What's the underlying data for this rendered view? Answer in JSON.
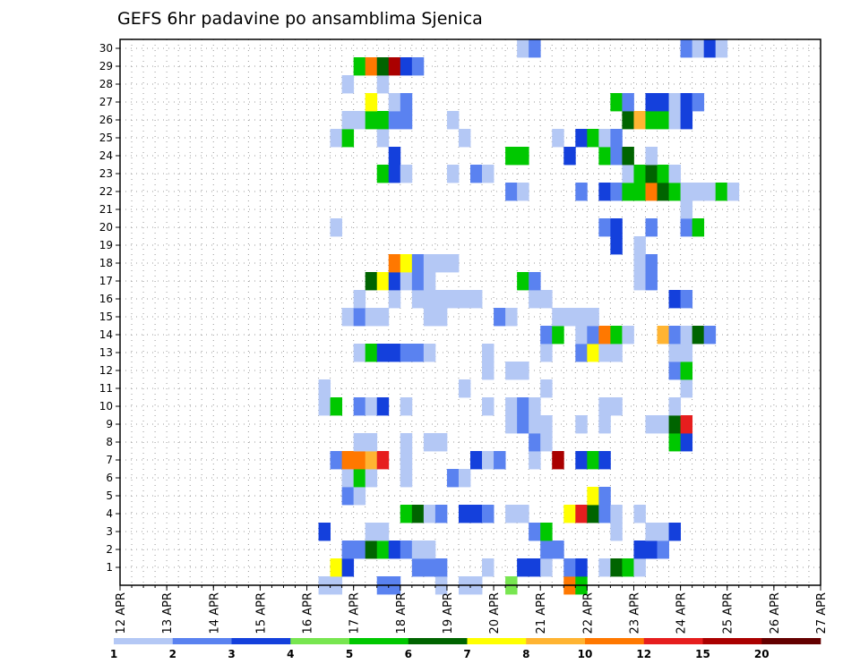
{
  "chart_data": {
    "type": "heatmap",
    "title": "GEFS 6hr padavine po ansamblima Sjenica",
    "xlabel": "",
    "ylabel": "",
    "x_start": "12 APR 00Z",
    "x_end": "27 APR 00Z",
    "x_step_hours": 6,
    "x_ticks": [
      "12 APR",
      "13 APR",
      "14 APR",
      "15 APR",
      "16 APR",
      "17 APR",
      "18 APR",
      "19 APR",
      "20 APR",
      "21 APR",
      "22 APR",
      "23 APR",
      "24 APR",
      "25 APR",
      "26 APR",
      "27 APR"
    ],
    "y_ticks": [
      "1",
      "2",
      "3",
      "4",
      "5",
      "6",
      "7",
      "8",
      "9",
      "10",
      "11",
      "12",
      "13",
      "14",
      "15",
      "16",
      "17",
      "18",
      "19",
      "20",
      "21",
      "22",
      "23",
      "24",
      "25",
      "26",
      "27",
      "28",
      "29",
      "30"
    ],
    "ylim": [
      0,
      30
    ],
    "grid": true,
    "legend": {
      "placement": "bottom",
      "levels": [
        "1",
        "2",
        "3",
        "4",
        "5",
        "6",
        "7",
        "8",
        "10",
        "12",
        "15",
        "20"
      ],
      "colors": [
        "#b4c8f5",
        "#5a82f0",
        "#1440dc",
        "#78e650",
        "#00c800",
        "#006400",
        "#ffff00",
        "#ffb432",
        "#ff7800",
        "#e61e1e",
        "#aa0000",
        "#640000"
      ]
    },
    "cells_note": "each cell: [time_step_index_from_12APR00Z, member, color_class_index]",
    "cells": [
      [
        17,
        0,
        0
      ],
      [
        18,
        0,
        0
      ],
      [
        22,
        0,
        1
      ],
      [
        23,
        0,
        1
      ],
      [
        27,
        0,
        0
      ],
      [
        29,
        0,
        0
      ],
      [
        30,
        0,
        0
      ],
      [
        33,
        0,
        3
      ],
      [
        38,
        0,
        8
      ],
      [
        39,
        0,
        4
      ],
      [
        18,
        1,
        6
      ],
      [
        19,
        1,
        2
      ],
      [
        25,
        1,
        1
      ],
      [
        26,
        1,
        1
      ],
      [
        27,
        1,
        1
      ],
      [
        31,
        1,
        0
      ],
      [
        34,
        1,
        2
      ],
      [
        35,
        1,
        2
      ],
      [
        36,
        1,
        0
      ],
      [
        38,
        1,
        1
      ],
      [
        39,
        1,
        2
      ],
      [
        41,
        1,
        0
      ],
      [
        42,
        1,
        5
      ],
      [
        43,
        1,
        4
      ],
      [
        44,
        1,
        0
      ],
      [
        19,
        2,
        1
      ],
      [
        20,
        2,
        1
      ],
      [
        21,
        2,
        5
      ],
      [
        22,
        2,
        4
      ],
      [
        23,
        2,
        2
      ],
      [
        24,
        2,
        1
      ],
      [
        25,
        2,
        0
      ],
      [
        26,
        2,
        0
      ],
      [
        36,
        2,
        1
      ],
      [
        37,
        2,
        1
      ],
      [
        44,
        2,
        2
      ],
      [
        45,
        2,
        2
      ],
      [
        46,
        2,
        1
      ],
      [
        17,
        3,
        2
      ],
      [
        21,
        3,
        0
      ],
      [
        22,
        3,
        0
      ],
      [
        35,
        3,
        1
      ],
      [
        36,
        3,
        4
      ],
      [
        42,
        3,
        0
      ],
      [
        45,
        3,
        0
      ],
      [
        46,
        3,
        0
      ],
      [
        47,
        3,
        2
      ],
      [
        24,
        4,
        4
      ],
      [
        25,
        4,
        5
      ],
      [
        26,
        4,
        0
      ],
      [
        27,
        4,
        1
      ],
      [
        29,
        4,
        2
      ],
      [
        30,
        4,
        2
      ],
      [
        31,
        4,
        1
      ],
      [
        33,
        4,
        0
      ],
      [
        34,
        4,
        0
      ],
      [
        38,
        4,
        6
      ],
      [
        39,
        4,
        9
      ],
      [
        40,
        4,
        5
      ],
      [
        41,
        4,
        1
      ],
      [
        42,
        4,
        0
      ],
      [
        44,
        4,
        0
      ],
      [
        19,
        5,
        1
      ],
      [
        20,
        5,
        0
      ],
      [
        40,
        5,
        6
      ],
      [
        41,
        5,
        1
      ],
      [
        19,
        6,
        0
      ],
      [
        20,
        6,
        4
      ],
      [
        21,
        6,
        0
      ],
      [
        24,
        6,
        0
      ],
      [
        28,
        6,
        1
      ],
      [
        29,
        6,
        0
      ],
      [
        18,
        7,
        1
      ],
      [
        19,
        7,
        8
      ],
      [
        20,
        7,
        8
      ],
      [
        21,
        7,
        7
      ],
      [
        22,
        7,
        9
      ],
      [
        24,
        7,
        0
      ],
      [
        30,
        7,
        2
      ],
      [
        31,
        7,
        0
      ],
      [
        32,
        7,
        1
      ],
      [
        35,
        7,
        0
      ],
      [
        37,
        7,
        10
      ],
      [
        39,
        7,
        2
      ],
      [
        40,
        7,
        4
      ],
      [
        41,
        7,
        2
      ],
      [
        20,
        8,
        0
      ],
      [
        21,
        8,
        0
      ],
      [
        24,
        8,
        0
      ],
      [
        26,
        8,
        0
      ],
      [
        27,
        8,
        0
      ],
      [
        35,
        8,
        1
      ],
      [
        36,
        8,
        0
      ],
      [
        47,
        8,
        4
      ],
      [
        48,
        8,
        2
      ],
      [
        33,
        9,
        0
      ],
      [
        34,
        9,
        1
      ],
      [
        35,
        9,
        0
      ],
      [
        36,
        9,
        0
      ],
      [
        39,
        9,
        0
      ],
      [
        41,
        9,
        0
      ],
      [
        45,
        9,
        0
      ],
      [
        46,
        9,
        0
      ],
      [
        47,
        9,
        5
      ],
      [
        48,
        9,
        9
      ],
      [
        17,
        10,
        0
      ],
      [
        18,
        10,
        4
      ],
      [
        20,
        10,
        1
      ],
      [
        21,
        10,
        0
      ],
      [
        22,
        10,
        2
      ],
      [
        24,
        10,
        0
      ],
      [
        31,
        10,
        0
      ],
      [
        33,
        10,
        0
      ],
      [
        34,
        10,
        1
      ],
      [
        35,
        10,
        0
      ],
      [
        41,
        10,
        0
      ],
      [
        42,
        10,
        0
      ],
      [
        47,
        10,
        0
      ],
      [
        17,
        11,
        0
      ],
      [
        29,
        11,
        0
      ],
      [
        36,
        11,
        0
      ],
      [
        48,
        11,
        0
      ],
      [
        31,
        12,
        0
      ],
      [
        33,
        12,
        0
      ],
      [
        34,
        12,
        0
      ],
      [
        47,
        12,
        1
      ],
      [
        48,
        12,
        4
      ],
      [
        20,
        13,
        0
      ],
      [
        21,
        13,
        4
      ],
      [
        22,
        13,
        2
      ],
      [
        23,
        13,
        2
      ],
      [
        24,
        13,
        1
      ],
      [
        25,
        13,
        1
      ],
      [
        26,
        13,
        0
      ],
      [
        31,
        13,
        0
      ],
      [
        36,
        13,
        0
      ],
      [
        39,
        13,
        1
      ],
      [
        40,
        13,
        6
      ],
      [
        41,
        13,
        0
      ],
      [
        42,
        13,
        0
      ],
      [
        47,
        13,
        0
      ],
      [
        48,
        13,
        0
      ],
      [
        36,
        14,
        1
      ],
      [
        37,
        14,
        4
      ],
      [
        39,
        14,
        0
      ],
      [
        40,
        14,
        1
      ],
      [
        41,
        14,
        8
      ],
      [
        42,
        14,
        4
      ],
      [
        43,
        14,
        0
      ],
      [
        46,
        14,
        7
      ],
      [
        47,
        14,
        1
      ],
      [
        48,
        14,
        0
      ],
      [
        49,
        14,
        5
      ],
      [
        50,
        14,
        1
      ],
      [
        19,
        15,
        0
      ],
      [
        20,
        15,
        1
      ],
      [
        21,
        15,
        0
      ],
      [
        22,
        15,
        0
      ],
      [
        26,
        15,
        0
      ],
      [
        27,
        15,
        0
      ],
      [
        32,
        15,
        1
      ],
      [
        33,
        15,
        0
      ],
      [
        37,
        15,
        0
      ],
      [
        38,
        15,
        0
      ],
      [
        39,
        15,
        0
      ],
      [
        40,
        15,
        0
      ],
      [
        20,
        16,
        0
      ],
      [
        23,
        16,
        0
      ],
      [
        25,
        16,
        0
      ],
      [
        26,
        16,
        0
      ],
      [
        27,
        16,
        0
      ],
      [
        28,
        16,
        0
      ],
      [
        29,
        16,
        0
      ],
      [
        30,
        16,
        0
      ],
      [
        35,
        16,
        0
      ],
      [
        36,
        16,
        0
      ],
      [
        47,
        16,
        2
      ],
      [
        48,
        16,
        1
      ],
      [
        21,
        17,
        5
      ],
      [
        22,
        17,
        6
      ],
      [
        23,
        17,
        2
      ],
      [
        24,
        17,
        0
      ],
      [
        25,
        17,
        1
      ],
      [
        26,
        17,
        0
      ],
      [
        34,
        17,
        4
      ],
      [
        35,
        17,
        1
      ],
      [
        44,
        17,
        0
      ],
      [
        45,
        17,
        1
      ],
      [
        23,
        18,
        8
      ],
      [
        24,
        18,
        6
      ],
      [
        25,
        18,
        1
      ],
      [
        26,
        18,
        0
      ],
      [
        27,
        18,
        0
      ],
      [
        28,
        18,
        0
      ],
      [
        44,
        18,
        0
      ],
      [
        45,
        18,
        1
      ],
      [
        42,
        19,
        2
      ],
      [
        44,
        19,
        0
      ],
      [
        18,
        20,
        0
      ],
      [
        41,
        20,
        1
      ],
      [
        42,
        20,
        2
      ],
      [
        45,
        20,
        1
      ],
      [
        48,
        20,
        1
      ],
      [
        49,
        20,
        4
      ],
      [
        48,
        21,
        0
      ],
      [
        33,
        22,
        1
      ],
      [
        34,
        22,
        0
      ],
      [
        39,
        22,
        1
      ],
      [
        41,
        22,
        2
      ],
      [
        42,
        22,
        1
      ],
      [
        43,
        22,
        4
      ],
      [
        44,
        22,
        4
      ],
      [
        45,
        22,
        8
      ],
      [
        46,
        22,
        5
      ],
      [
        47,
        22,
        4
      ],
      [
        48,
        22,
        0
      ],
      [
        49,
        22,
        0
      ],
      [
        50,
        22,
        0
      ],
      [
        51,
        22,
        4
      ],
      [
        52,
        22,
        0
      ],
      [
        22,
        23,
        4
      ],
      [
        23,
        23,
        2
      ],
      [
        24,
        23,
        0
      ],
      [
        28,
        23,
        0
      ],
      [
        30,
        23,
        1
      ],
      [
        31,
        23,
        0
      ],
      [
        43,
        23,
        0
      ],
      [
        44,
        23,
        4
      ],
      [
        45,
        23,
        5
      ],
      [
        46,
        23,
        4
      ],
      [
        47,
        23,
        0
      ],
      [
        23,
        24,
        2
      ],
      [
        33,
        24,
        4
      ],
      [
        34,
        24,
        4
      ],
      [
        38,
        24,
        2
      ],
      [
        41,
        24,
        4
      ],
      [
        42,
        24,
        1
      ],
      [
        43,
        24,
        5
      ],
      [
        45,
        24,
        0
      ],
      [
        18,
        25,
        0
      ],
      [
        19,
        25,
        4
      ],
      [
        22,
        25,
        0
      ],
      [
        29,
        25,
        0
      ],
      [
        37,
        25,
        0
      ],
      [
        39,
        25,
        2
      ],
      [
        40,
        25,
        4
      ],
      [
        41,
        25,
        0
      ],
      [
        42,
        25,
        1
      ],
      [
        19,
        26,
        0
      ],
      [
        20,
        26,
        0
      ],
      [
        21,
        26,
        4
      ],
      [
        22,
        26,
        4
      ],
      [
        23,
        26,
        1
      ],
      [
        24,
        26,
        1
      ],
      [
        28,
        26,
        0
      ],
      [
        43,
        26,
        5
      ],
      [
        44,
        26,
        7
      ],
      [
        45,
        26,
        4
      ],
      [
        46,
        26,
        4
      ],
      [
        47,
        26,
        0
      ],
      [
        48,
        26,
        2
      ],
      [
        21,
        27,
        6
      ],
      [
        23,
        27,
        0
      ],
      [
        24,
        27,
        1
      ],
      [
        42,
        27,
        4
      ],
      [
        43,
        27,
        1
      ],
      [
        45,
        27,
        2
      ],
      [
        46,
        27,
        2
      ],
      [
        47,
        27,
        0
      ],
      [
        48,
        27,
        2
      ],
      [
        49,
        27,
        1
      ],
      [
        19,
        28,
        0
      ],
      [
        22,
        28,
        0
      ],
      [
        20,
        29,
        4
      ],
      [
        21,
        29,
        8
      ],
      [
        22,
        29,
        5
      ],
      [
        23,
        29,
        10
      ],
      [
        24,
        29,
        2
      ],
      [
        25,
        29,
        1
      ],
      [
        34,
        30,
        0
      ],
      [
        35,
        30,
        1
      ],
      [
        48,
        30,
        1
      ],
      [
        49,
        30,
        0
      ],
      [
        50,
        30,
        2
      ],
      [
        51,
        30,
        0
      ]
    ]
  }
}
